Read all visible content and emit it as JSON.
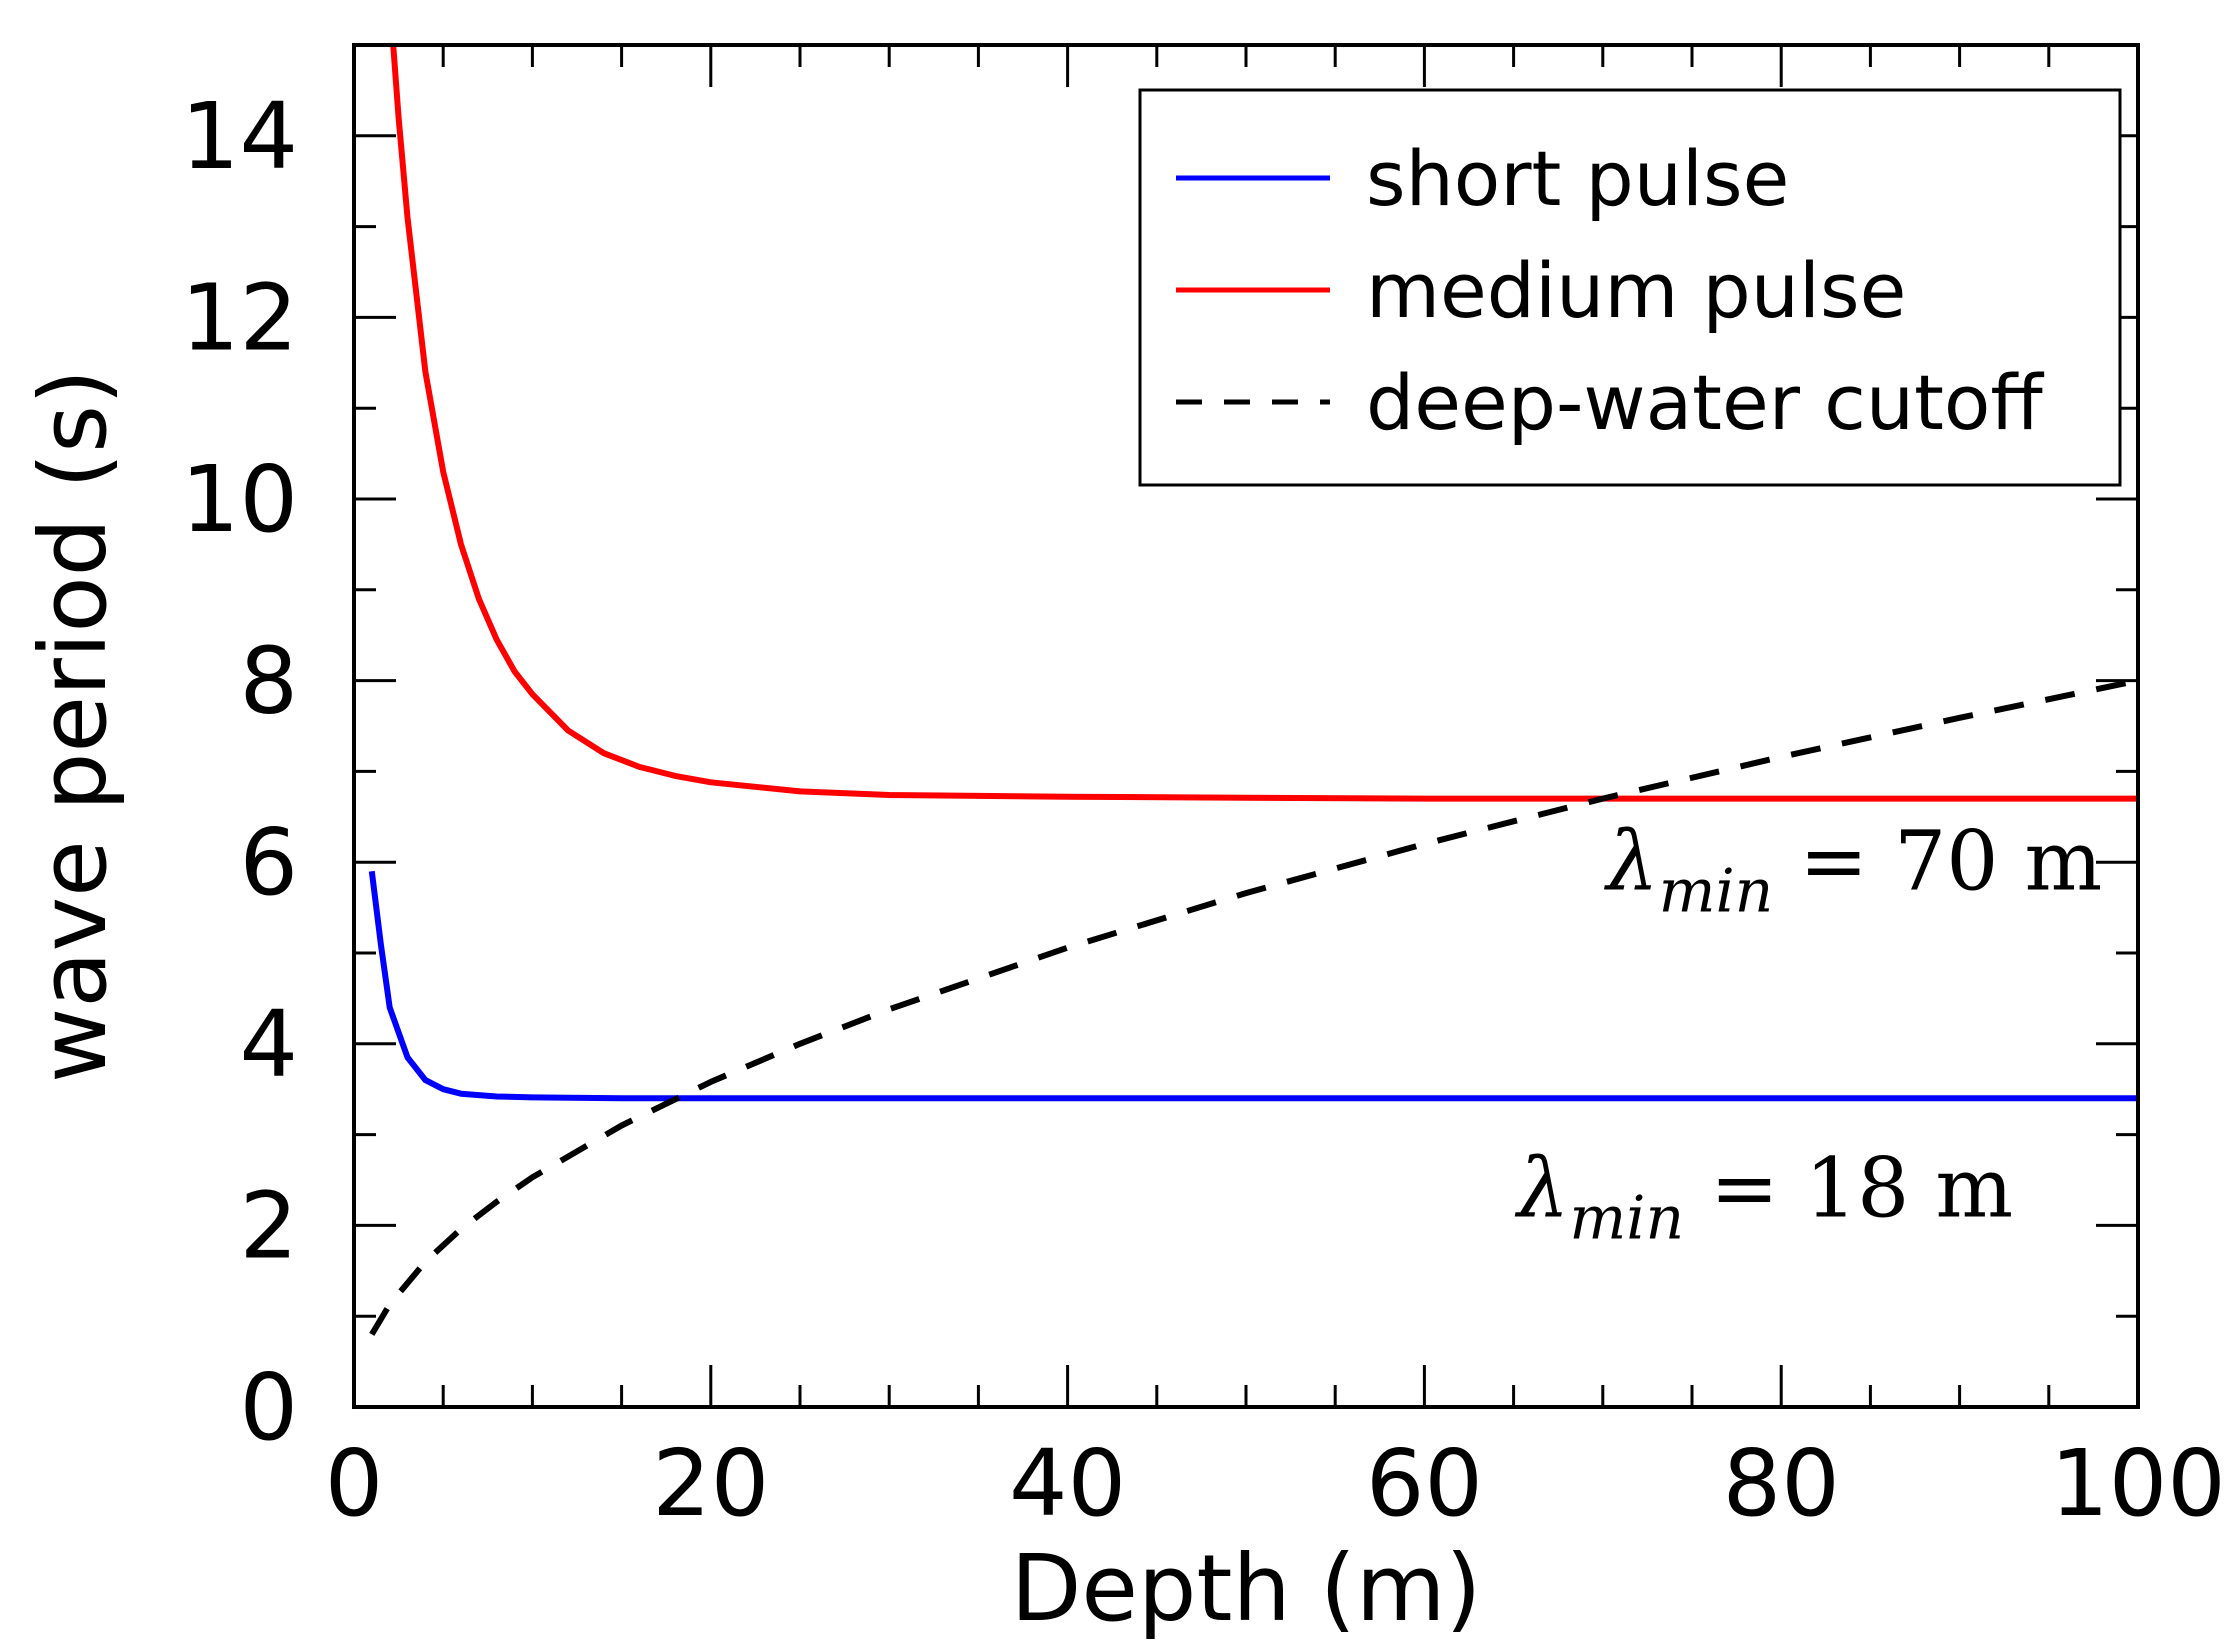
{
  "chart_data": {
    "type": "line",
    "title": "",
    "xlabel": "Depth (m)",
    "ylabel": "wave period (s)",
    "xlim": [
      0,
      100
    ],
    "ylim": [
      0,
      15
    ],
    "xticks": [
      0,
      20,
      40,
      60,
      80,
      100
    ],
    "yticks": [
      0,
      2,
      4,
      6,
      8,
      10,
      12,
      14
    ],
    "x_minor_step": 5,
    "y_minor_step": 1,
    "grid": false,
    "legend_position": "top-right",
    "series": [
      {
        "name": "short pulse",
        "color": "#0000ff",
        "style": "solid",
        "x": [
          1,
          1.5,
          2,
          3,
          4,
          5,
          6,
          8,
          10,
          15,
          20,
          30,
          40,
          50,
          60,
          70,
          80,
          90,
          100
        ],
        "y": [
          5.9,
          5.1,
          4.4,
          3.85,
          3.6,
          3.5,
          3.45,
          3.42,
          3.41,
          3.4,
          3.4,
          3.4,
          3.4,
          3.4,
          3.4,
          3.4,
          3.4,
          3.4,
          3.4
        ]
      },
      {
        "name": "medium pulse",
        "color": "#ff0000",
        "style": "solid",
        "x": [
          2.2,
          2.5,
          3,
          4,
          5,
          6,
          7,
          8,
          9,
          10,
          12,
          14,
          16,
          18,
          20,
          25,
          30,
          40,
          50,
          60,
          70,
          80,
          90,
          100
        ],
        "y": [
          15,
          14.2,
          13.1,
          11.4,
          10.3,
          9.5,
          8.9,
          8.45,
          8.1,
          7.85,
          7.45,
          7.2,
          7.05,
          6.95,
          6.88,
          6.78,
          6.74,
          6.72,
          6.71,
          6.7,
          6.7,
          6.7,
          6.7,
          6.7
        ]
      },
      {
        "name": "deep-water cutoff",
        "color": "#000000",
        "style": "dashed",
        "x": [
          1,
          2,
          4,
          6,
          8,
          10,
          15,
          20,
          25,
          30,
          40,
          50,
          60,
          70,
          80,
          90,
          100
        ],
        "y": [
          0.8,
          1.13,
          1.6,
          1.96,
          2.26,
          2.53,
          3.1,
          3.58,
          4.0,
          4.38,
          5.06,
          5.66,
          6.2,
          6.7,
          7.16,
          7.59,
          8.0
        ]
      }
    ],
    "annotations": [
      {
        "symbol": "λ",
        "subscript": "min",
        "rest": " = 70 m",
        "x": 98,
        "y": 5.7,
        "anchor": "end"
      },
      {
        "symbol": "λ",
        "subscript": "min",
        "rest": " = 18 m",
        "x": 93,
        "y": 2.1,
        "anchor": "end"
      }
    ]
  }
}
